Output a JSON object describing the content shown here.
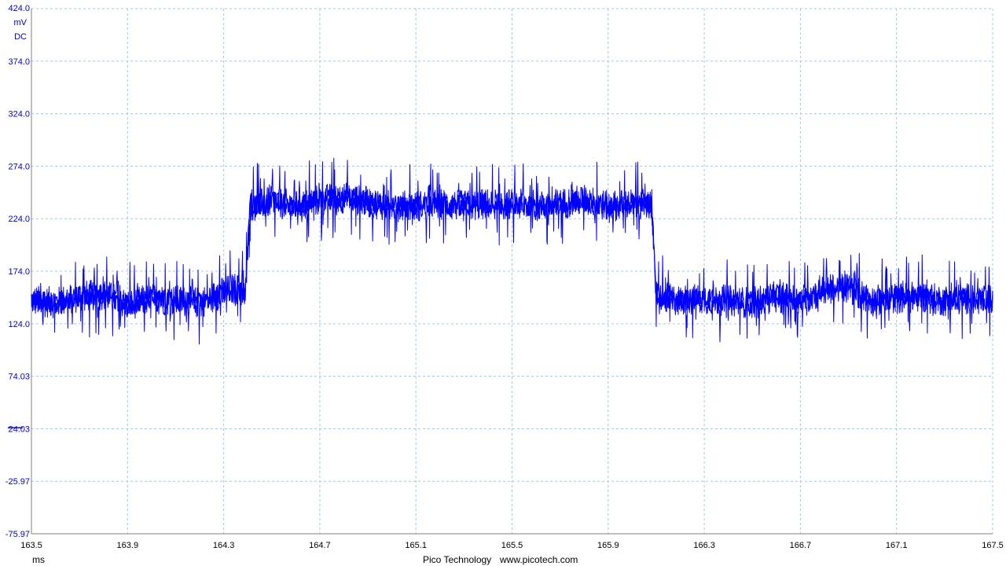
{
  "chart_data": {
    "type": "line",
    "title": "",
    "xlabel": "ms",
    "ylabel": "mV",
    "coupling": "DC",
    "xlim": [
      163.5,
      167.5
    ],
    "ylim": [
      -75.97,
      424.0
    ],
    "x_ticks": [
      "163.5",
      "163.9",
      "164.3",
      "164.7",
      "165.1",
      "165.5",
      "165.9",
      "166.3",
      "166.7",
      "167.1",
      "167.5"
    ],
    "y_ticks": [
      "424.0",
      "374.0",
      "324.0",
      "274.0",
      "224.0",
      "174.0",
      "124.0",
      "74.03",
      "24.03",
      "-25.97",
      "-75.97"
    ],
    "grid": true,
    "grid_style": "dashed",
    "series": [
      {
        "color": "#0000ff",
        "x": [
          163.5,
          163.6,
          163.7,
          163.8,
          163.9,
          164.0,
          164.1,
          164.2,
          164.3,
          164.35,
          164.39,
          164.41,
          164.5,
          164.6,
          164.7,
          164.8,
          164.9,
          165.0,
          165.1,
          165.2,
          165.3,
          165.4,
          165.5,
          165.6,
          165.7,
          165.8,
          165.9,
          166.0,
          166.08,
          166.1,
          166.2,
          166.3,
          166.4,
          166.5,
          166.6,
          166.7,
          166.8,
          166.9,
          167.0,
          167.1,
          167.2,
          167.3,
          167.4,
          167.5
        ],
        "mean": [
          146,
          144,
          150,
          152,
          142,
          148,
          146,
          144,
          154,
          158,
          152,
          236,
          240,
          236,
          242,
          244,
          240,
          236,
          236,
          238,
          236,
          238,
          238,
          236,
          238,
          242,
          236,
          238,
          238,
          150,
          146,
          148,
          146,
          144,
          150,
          146,
          156,
          158,
          146,
          148,
          150,
          146,
          148,
          146
        ],
        "noise_band": 30,
        "spike_max": 40
      }
    ],
    "ground_marker": 25
  },
  "footer": {
    "x_unit": "ms",
    "brand": "Pico Technology",
    "url": "www.picotech.com"
  },
  "colors": {
    "trace": "#0000ff",
    "axis_text": "#0000cc",
    "grid": "#9ccce0",
    "axis": "#808080",
    "text": "#000000"
  }
}
